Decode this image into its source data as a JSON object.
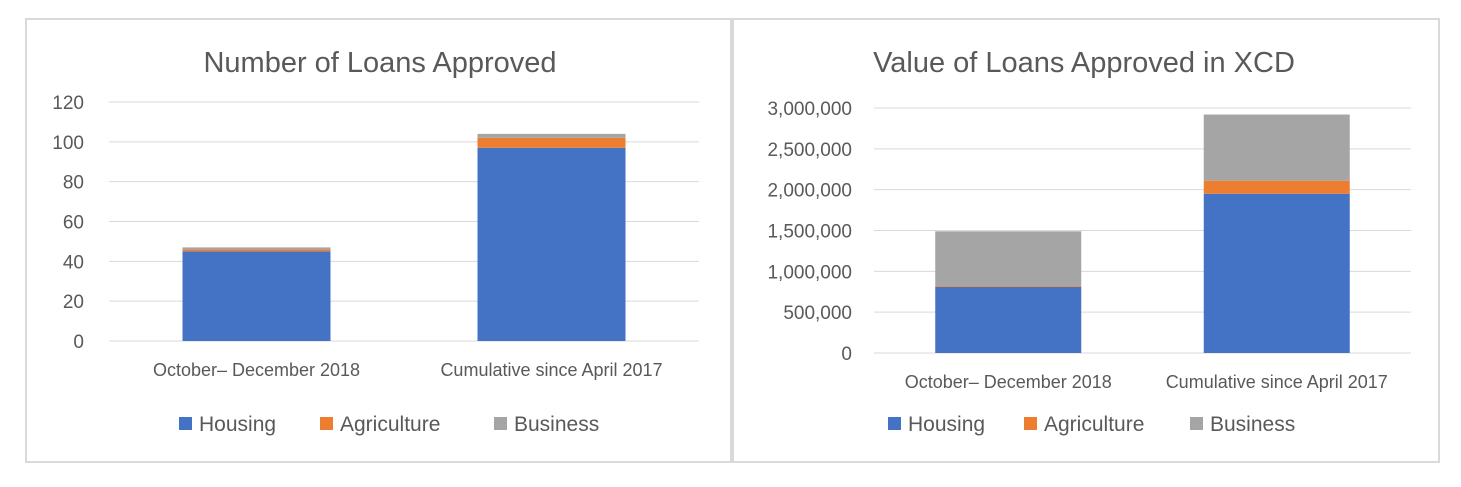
{
  "colors": {
    "Housing": "#4472c4",
    "Agriculture": "#ed7d31",
    "Business": "#a5a5a5"
  },
  "chart_data": [
    {
      "type": "bar",
      "stacked": true,
      "title": "Number of Loans Approved",
      "categories": [
        "October– December 2018",
        "Cumulative since April 2017"
      ],
      "series": [
        {
          "name": "Housing",
          "values": [
            45,
            97
          ]
        },
        {
          "name": "Agriculture",
          "values": [
            1,
            5
          ]
        },
        {
          "name": "Business",
          "values": [
            1,
            2
          ]
        }
      ],
      "ylim": [
        0,
        120
      ],
      "yticks": [
        "0",
        "20",
        "40",
        "60",
        "80",
        "100",
        "120"
      ],
      "grid": true,
      "legend": "bottom"
    },
    {
      "type": "bar",
      "stacked": true,
      "title": "Value of Loans Approved in XCD",
      "categories": [
        "October– December 2018",
        "Cumulative since April 2017"
      ],
      "series": [
        {
          "name": "Housing",
          "values": [
            810000,
            1950000
          ]
        },
        {
          "name": "Agriculture",
          "values": [
            10000,
            160000
          ]
        },
        {
          "name": "Business",
          "values": [
            670000,
            810000
          ]
        }
      ],
      "ylim": [
        0,
        3000000
      ],
      "yticks": [
        "0",
        "500,000",
        "1,000,000",
        "1,500,000",
        "2,000,000",
        "2,500,000",
        "3,000,000"
      ],
      "grid": true,
      "legend": "bottom"
    }
  ]
}
